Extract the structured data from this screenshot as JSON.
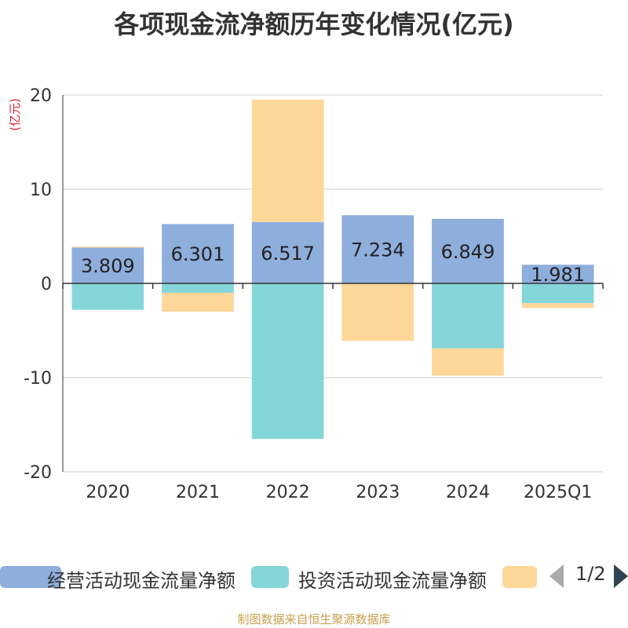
{
  "chart_data": {
    "type": "bar",
    "title": "各项现金流净额历年变化情况(亿元)",
    "ylabel": "(亿元)",
    "categories": [
      "2020",
      "2021",
      "2022",
      "2023",
      "2024",
      "2025Q1"
    ],
    "ylim": [
      -20,
      20
    ],
    "yticks": [
      20,
      10,
      0,
      -10,
      -20
    ],
    "grid": true,
    "stacked": true,
    "series": [
      {
        "name": "经营活动现金流量净额",
        "color": "#8eaedc",
        "values": [
          3.809,
          6.301,
          6.517,
          7.234,
          6.849,
          1.981
        ],
        "labels": [
          "3.809",
          "6.301",
          "6.517",
          "7.234",
          "6.849",
          "1.981"
        ]
      },
      {
        "name": "投资活动现金流量净额",
        "color": "#85d6d8",
        "values": [
          -2.8,
          -1.0,
          -16.5,
          0,
          -6.9,
          -2.1
        ]
      },
      {
        "name": "",
        "color": "#fdd89a",
        "values": [
          0.1,
          -2.0,
          13.0,
          -6.1,
          -2.9,
          -0.5
        ]
      }
    ]
  },
  "legend": {
    "page": "1/2"
  },
  "source": "制图数据来自恒生聚源数据库"
}
